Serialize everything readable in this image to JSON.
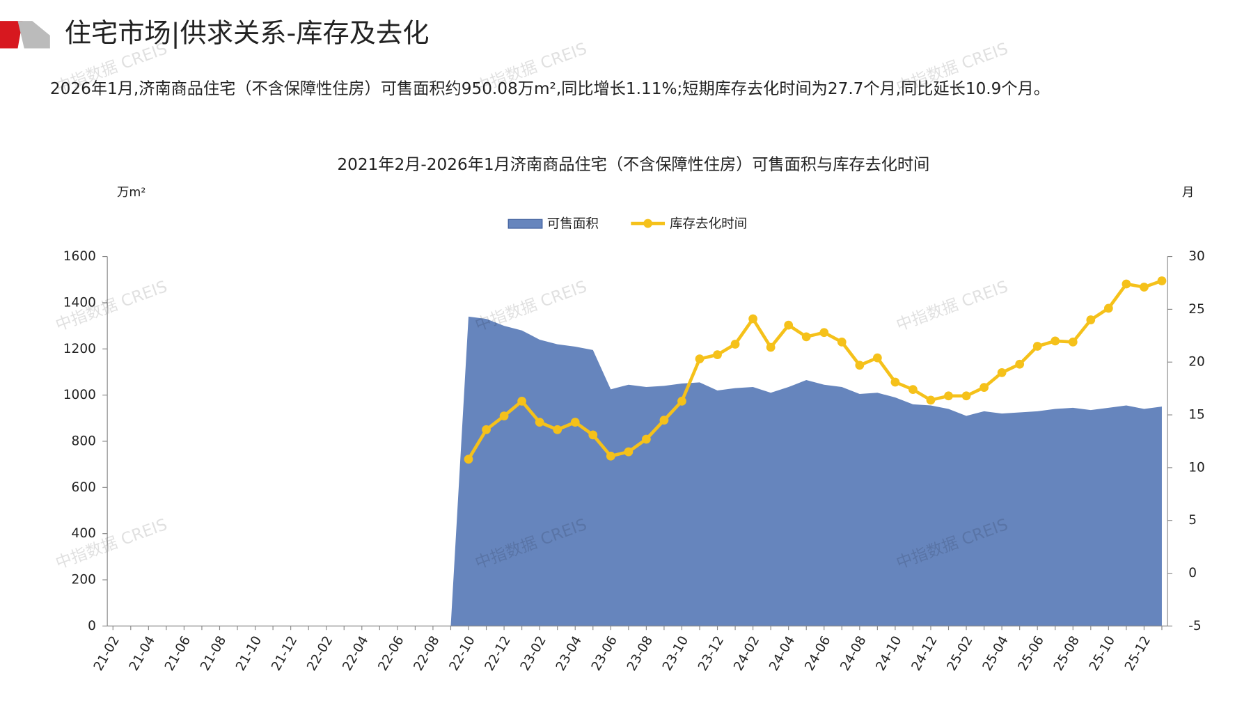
{
  "header": {
    "title": "住宅市场|供求关系-库存及去化",
    "summary": "2026年1月,济南商品住宅（不含保障性住房）可售面积约950.08万m²,同比增长1.11%;短期库存去化时间为27.7个月,同比延长10.9个月。"
  },
  "watermark": "中指数据 CREIS",
  "chart_data": {
    "type": "area_line",
    "title": "2021年2月-2026年1月济南商品住宅（不含保障性住房）可售面积与库存去化时间",
    "y_label": "万m²",
    "y2_label": "月",
    "categories": [
      "21-02",
      null,
      "21-04",
      null,
      "21-06",
      null,
      "21-08",
      null,
      "21-10",
      null,
      "21-12",
      null,
      "22-02",
      null,
      "22-04",
      null,
      "22-06",
      null,
      "22-08",
      null,
      "22-10",
      null,
      "22-12",
      null,
      "23-02",
      null,
      "23-04",
      null,
      "23-06",
      null,
      "23-08",
      null,
      "23-10",
      null,
      "23-12",
      null,
      "24-02",
      null,
      "24-04",
      null,
      "24-06",
      null,
      "24-08",
      null,
      "24-10",
      null,
      "24-12",
      null,
      "25-02",
      null,
      "25-04",
      null,
      "25-06",
      null,
      "25-08",
      null,
      "25-10",
      null,
      "25-12",
      null
    ],
    "series": [
      {
        "name": "可售面积",
        "color": "#6685bd",
        "type": "area",
        "values": [
          0,
          0,
          0,
          0,
          0,
          0,
          0,
          0,
          0,
          0,
          0,
          0,
          0,
          0,
          0,
          0,
          0,
          0,
          0,
          0,
          1340,
          1330,
          1300,
          1280,
          1240,
          1220,
          1210,
          1195,
          1025,
          1045,
          1035,
          1040,
          1050,
          1055,
          1020,
          1030,
          1035,
          1010,
          1035,
          1065,
          1045,
          1035,
          1005,
          1010,
          990,
          960,
          955,
          940,
          910,
          930,
          920,
          925,
          930,
          940,
          945,
          935,
          945,
          955,
          940,
          950.08
        ]
      },
      {
        "name": "库存去化时间",
        "color": "#f5c11a",
        "type": "line",
        "axis": "y2",
        "values": [
          null,
          null,
          null,
          null,
          null,
          null,
          null,
          null,
          null,
          null,
          null,
          null,
          null,
          null,
          null,
          null,
          null,
          null,
          null,
          null,
          10.8,
          13.6,
          14.9,
          16.3,
          14.3,
          13.6,
          14.3,
          13.1,
          11.1,
          11.5,
          12.7,
          14.5,
          16.3,
          20.3,
          20.7,
          21.7,
          24.1,
          21.4,
          23.5,
          22.4,
          22.8,
          21.9,
          19.7,
          20.4,
          18.1,
          17.4,
          16.4,
          16.8,
          16.8,
          17.6,
          19.0,
          19.8,
          21.5,
          22.0,
          21.9,
          24.0,
          25.1,
          27.4,
          27.1,
          27.7
        ]
      }
    ],
    "ylim": [
      0,
      1600
    ],
    "yticks": [
      0,
      200,
      400,
      600,
      800,
      1000,
      1200,
      1400,
      1600
    ],
    "y2lim": [
      -5,
      30
    ],
    "y2ticks": [
      -5,
      0,
      5,
      10,
      15,
      20,
      25,
      30
    ],
    "legend": "top"
  }
}
